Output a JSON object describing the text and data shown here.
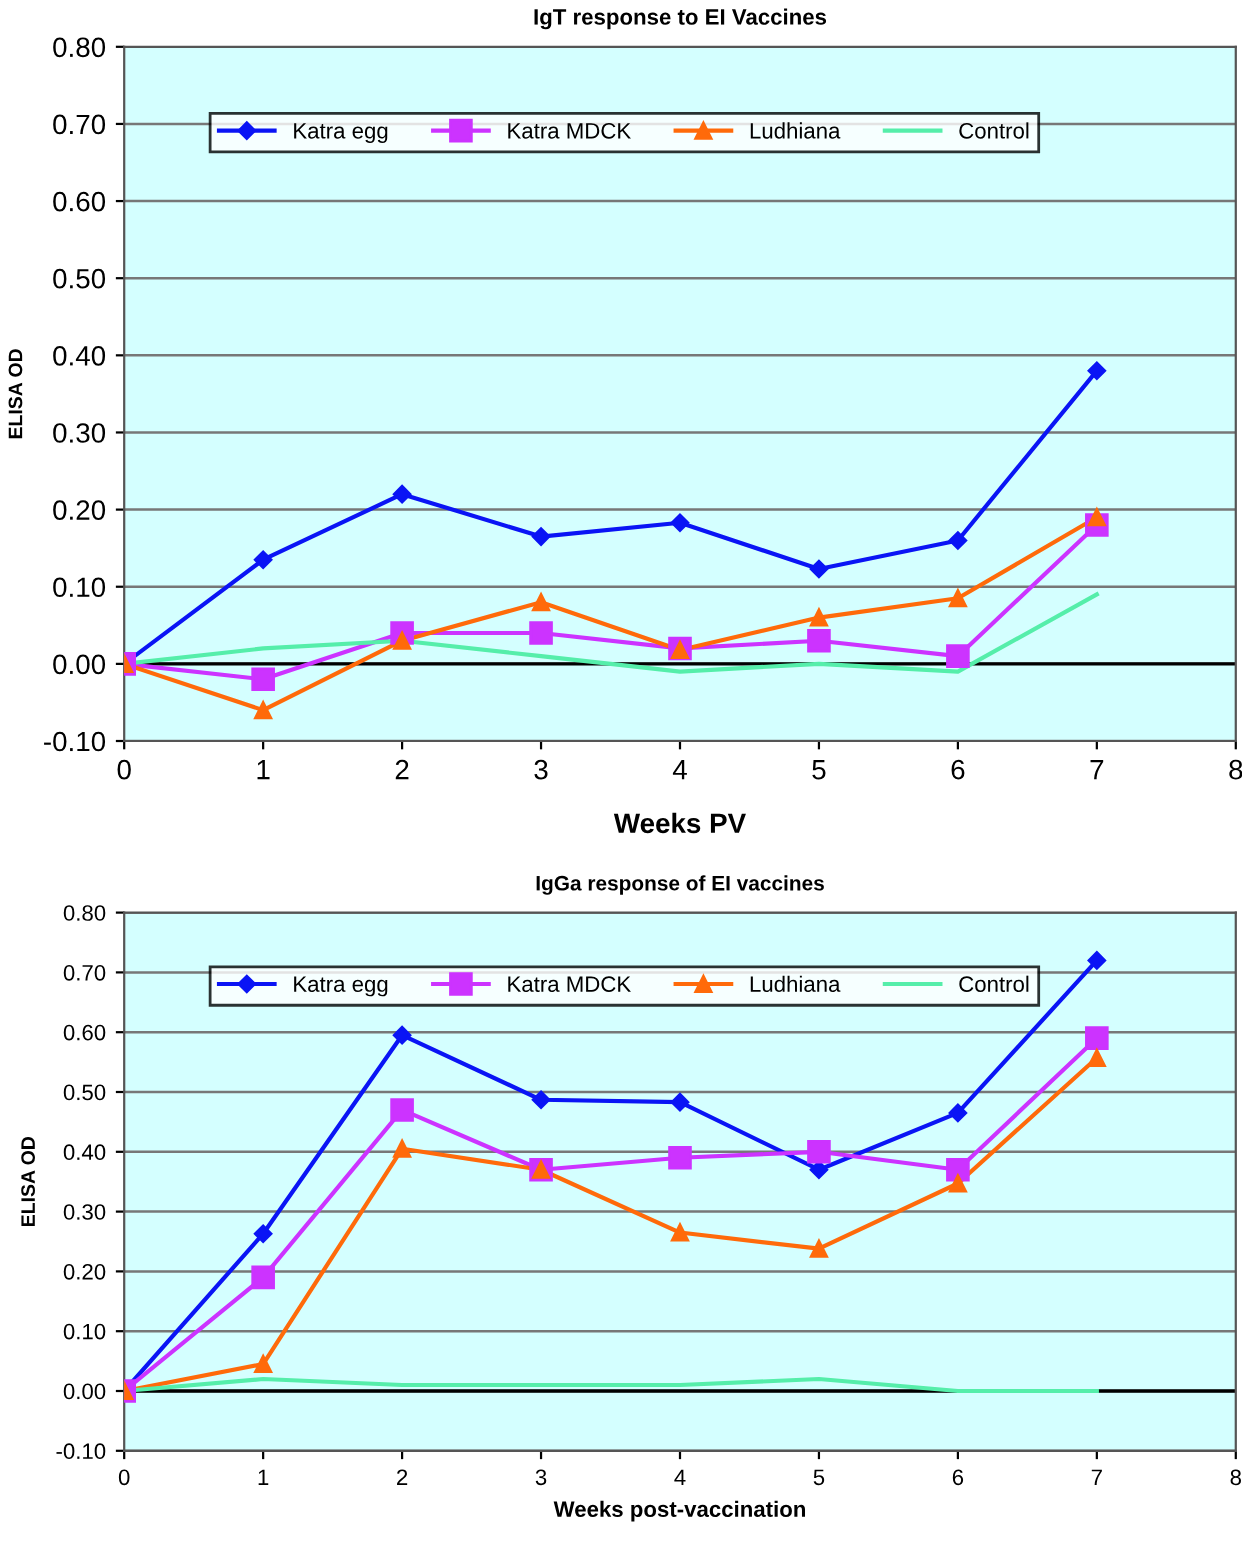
{
  "chart_data": [
    {
      "type": "line",
      "title": "IgT response to EI Vaccines",
      "xlabel": "Weeks PV",
      "ylabel": "ELISA OD",
      "x": [
        0,
        1,
        2,
        3,
        4,
        5,
        6,
        7
      ],
      "series": [
        {
          "name": "Katra egg",
          "color": "#0a14f5",
          "marker": "diamond",
          "values": [
            0,
            0.135,
            0.22,
            0.165,
            0.183,
            0.123,
            0.16,
            0.38
          ]
        },
        {
          "name": "Katra MDCK",
          "color": "#cc33ff",
          "marker": "square",
          "values": [
            0,
            -0.02,
            0.04,
            0.04,
            0.02,
            0.03,
            0.01,
            0.18
          ]
        },
        {
          "name": "Ludhiana",
          "color": "#ff6a0a",
          "marker": "triangle",
          "values": [
            0,
            -0.06,
            0.03,
            0.08,
            0.018,
            0.06,
            0.085,
            0.19
          ]
        },
        {
          "name": "Control",
          "color": "#55eeaa",
          "marker": "none",
          "values": [
            0,
            0.02,
            0.03,
            0.01,
            -0.01,
            0.0,
            -0.01,
            0.09
          ]
        }
      ],
      "xlim": [
        0,
        8
      ],
      "ylim": [
        -0.1,
        0.8
      ],
      "xticks": [
        0,
        1,
        2,
        3,
        4,
        5,
        6,
        7,
        8
      ],
      "yticks": [
        {
          "value": -0.1,
          "label": "-0.10"
        },
        {
          "value": 0,
          "label": "0.00"
        },
        {
          "value": 0.1,
          "label": "0.10"
        },
        {
          "value": 0.2,
          "label": "0.20"
        },
        {
          "value": 0.3,
          "label": "0.30"
        },
        {
          "value": 0.4,
          "label": "0.40"
        },
        {
          "value": 0.5,
          "label": "0.50"
        },
        {
          "value": 0.6,
          "label": "0.60"
        },
        {
          "value": 0.7,
          "label": "0.70"
        },
        {
          "value": 0.8,
          "label": "0.80"
        }
      ],
      "ref_lines": [
        {
          "axis": "y",
          "value": 0,
          "color": "#000000"
        }
      ],
      "grid": "y",
      "legend": "top",
      "line_style": "solid"
    },
    {
      "type": "line",
      "title": "IgGa response of EI vaccines",
      "xlabel": "Weeks post-vaccination",
      "ylabel": "ELISA OD",
      "x": [
        0,
        1,
        2,
        3,
        4,
        5,
        6,
        7
      ],
      "series": [
        {
          "name": "Katra egg",
          "color": "#0a14f5",
          "marker": "diamond",
          "values": [
            0,
            0.263,
            0.595,
            0.487,
            0.483,
            0.37,
            0.465,
            0.72
          ]
        },
        {
          "name": "Katra MDCK",
          "color": "#cc33ff",
          "marker": "square",
          "values": [
            0,
            0.19,
            0.47,
            0.37,
            0.39,
            0.4,
            0.37,
            0.59
          ]
        },
        {
          "name": "Ludhiana",
          "color": "#ff6a0a",
          "marker": "triangle",
          "values": [
            0,
            0.045,
            0.405,
            0.37,
            0.265,
            0.238,
            0.347,
            0.557
          ]
        },
        {
          "name": "Control",
          "color": "#55eeaa",
          "marker": "none",
          "values": [
            0,
            0.02,
            0.01,
            0.01,
            0.01,
            0.02,
            0.0,
            0.0
          ]
        }
      ],
      "xlim": [
        0,
        8
      ],
      "ylim": [
        -0.1,
        0.8
      ],
      "xticks": [
        0,
        1,
        2,
        3,
        4,
        5,
        6,
        7,
        8
      ],
      "yticks": [
        {
          "value": -0.1,
          "label": "-0.10"
        },
        {
          "value": 0,
          "label": "0.00"
        },
        {
          "value": 0.1,
          "label": "0.10"
        },
        {
          "value": 0.2,
          "label": "0.20"
        },
        {
          "value": 0.3,
          "label": "0.30"
        },
        {
          "value": 0.4,
          "label": "0.40"
        },
        {
          "value": 0.5,
          "label": "0.50"
        },
        {
          "value": 0.6,
          "label": "0.60"
        },
        {
          "value": 0.7,
          "label": "0.70"
        },
        {
          "value": 0.8,
          "label": "0.80"
        }
      ],
      "ref_lines": [
        {
          "axis": "y",
          "value": 0,
          "color": "#000000"
        }
      ],
      "grid": "y",
      "legend": "top",
      "line_style": "solid"
    }
  ]
}
